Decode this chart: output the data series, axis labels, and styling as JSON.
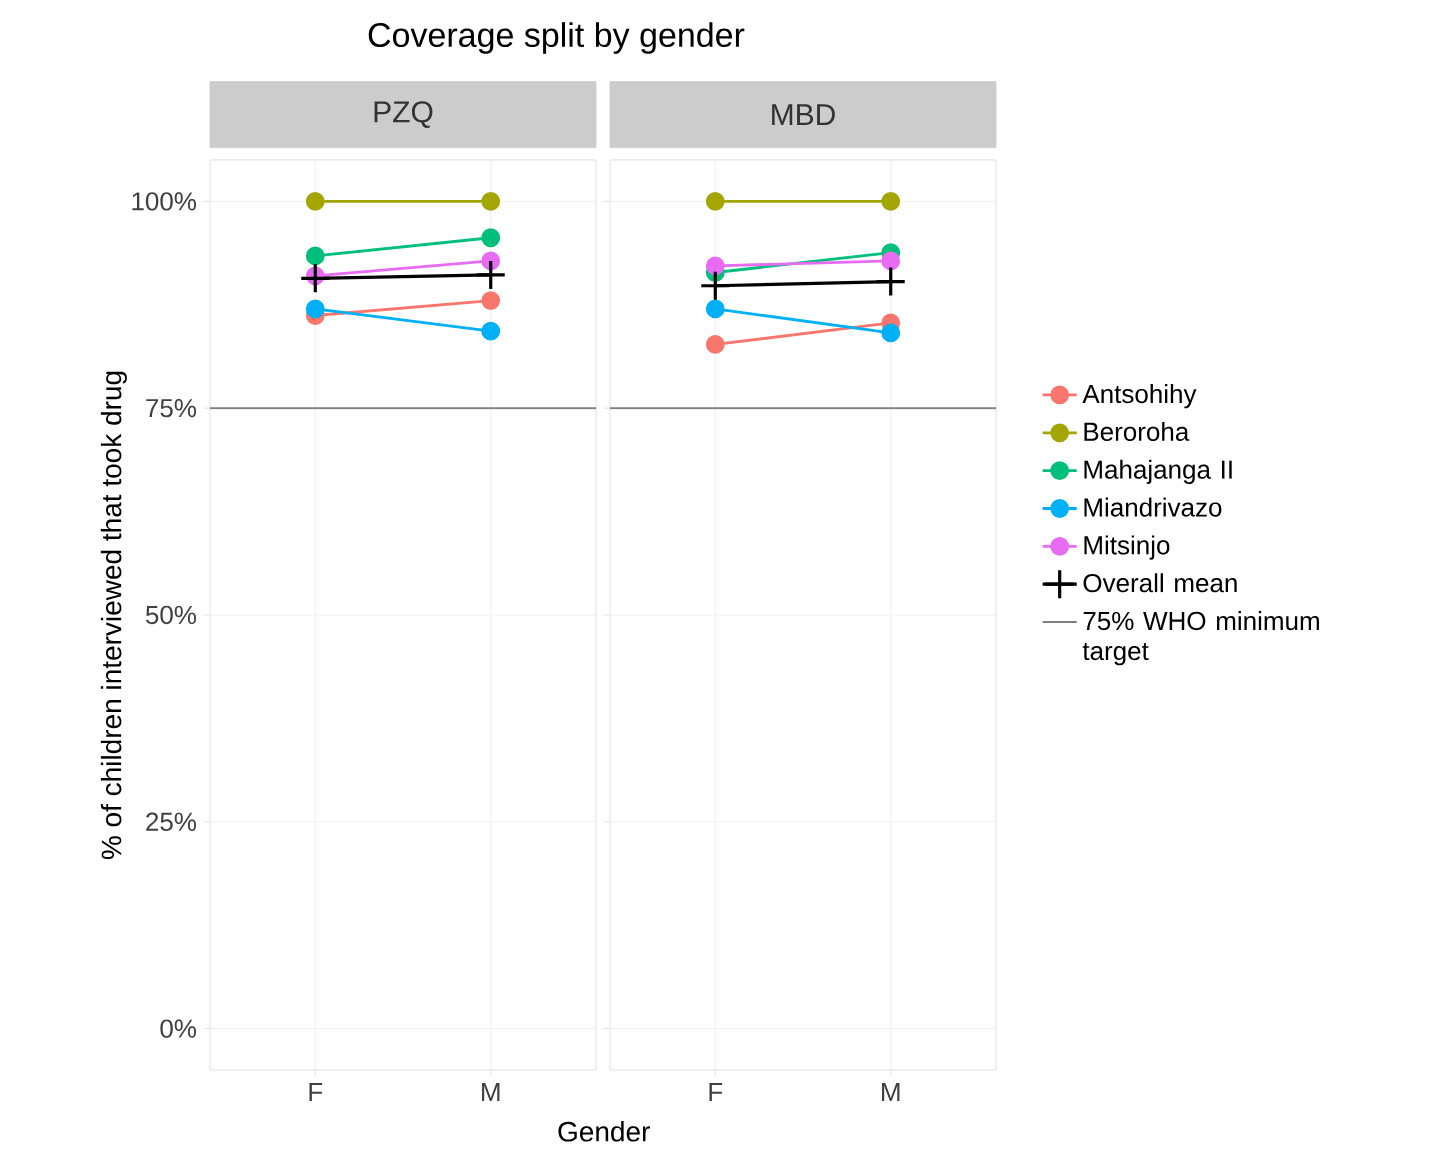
{
  "chart_data": [
    {
      "type": "line",
      "title": "Coverage split by gender",
      "subtitle": "PZQ",
      "xlabel": "Gender",
      "ylabel": "% of children interviewed that took drug",
      "categories": [
        "F",
        "M"
      ],
      "series": [
        {
          "color": "#f8766d",
          "values": [
            86.2,
            88.0
          ]
        },
        {
          "color": "#a3a500",
          "values": [
            100,
            100
          ]
        },
        {
          "color": "#00bf7d",
          "values": [
            93.4,
            95.6
          ]
        },
        {
          "color": "#00b0f6",
          "values": [
            87.0,
            84.3
          ]
        },
        {
          "color": "#e76bf3",
          "values": [
            91.0,
            92.8
          ]
        },
        {
          "color": "#000000",
          "marker": "cross",
          "values": [
            90.7,
            91.1
          ]
        }
      ],
      "ylim": [
        -5,
        105
      ],
      "yticks": [
        {
          "value": 0,
          "label": "0%"
        },
        {
          "value": 25,
          "label": "25%"
        },
        {
          "value": 50,
          "label": "50%"
        },
        {
          "value": 75,
          "label": "75%"
        },
        {
          "value": 100,
          "label": "100%"
        }
      ],
      "ref_lines": [
        {
          "axis": "y",
          "value": 75,
          "color": "#7f7f7f"
        }
      ],
      "grid": true,
      "marker": "circle"
    },
    {
      "type": "line",
      "subtitle": "MBD",
      "categories": [
        "F",
        "M"
      ],
      "series": [
        {
          "name": "Antsohihy",
          "color": "#f8766d",
          "values": [
            82.7,
            85.3
          ]
        },
        {
          "name": "Beroroha",
          "color": "#a3a500",
          "values": [
            100,
            100
          ]
        },
        {
          "name": "Mahajanga II",
          "color": "#00bf7d",
          "values": [
            91.4,
            93.8
          ]
        },
        {
          "name": "Miandrivazo",
          "color": "#00b0f6",
          "values": [
            87.0,
            84.1
          ]
        },
        {
          "name": "Mitsinjo",
          "color": "#e76bf3",
          "values": [
            92.2,
            92.8
          ]
        },
        {
          "name": "Overall mean",
          "color": "#000000",
          "marker": "cross",
          "values": [
            89.8,
            90.3
          ]
        }
      ],
      "ylim": [
        -5,
        105
      ],
      "yticks": [
        0,
        25,
        50,
        75,
        100
      ],
      "ref_lines": [
        {
          "axis": "y",
          "value": 75,
          "color": "#7f7f7f",
          "label": "75% WHO minimum target"
        }
      ],
      "grid": true,
      "marker": "circle",
      "legend": "right",
      "tick_labels": "x"
    }
  ]
}
